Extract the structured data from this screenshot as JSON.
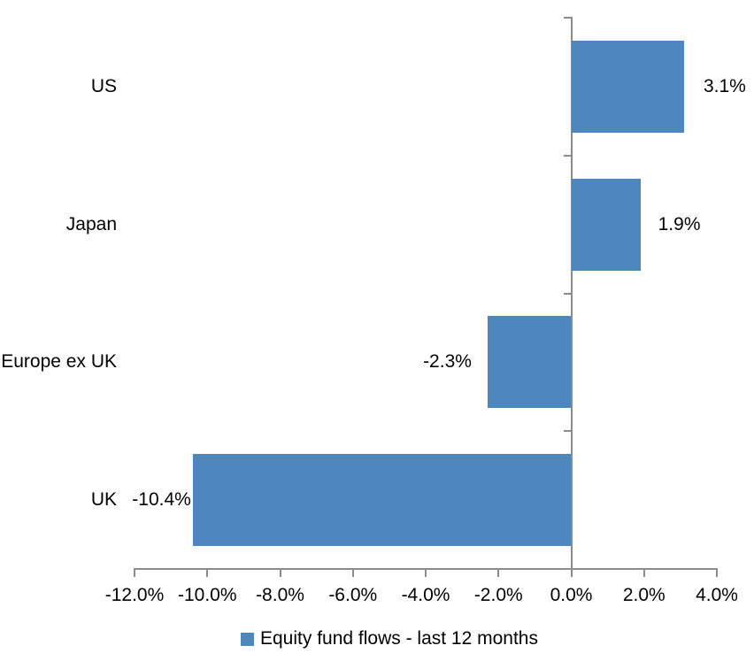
{
  "chart_data": {
    "type": "bar",
    "orientation": "horizontal",
    "title": "",
    "categories": [
      "US",
      "Japan",
      "Europe ex UK",
      "UK"
    ],
    "series": [
      {
        "name": "Equity fund flows - last 12 months",
        "values": [
          3.1,
          1.9,
          -2.3,
          -10.4
        ]
      }
    ],
    "data_labels": [
      "3.1%",
      "1.9%",
      "-2.3%",
      "-10.4%"
    ],
    "x_ticks": [
      "-12.0%",
      "-10.0%",
      "-8.0%",
      "-6.0%",
      "-4.0%",
      "-2.0%",
      "0.0%",
      "2.0%",
      "4.0%"
    ],
    "x_tick_values": [
      -12,
      -10,
      -8,
      -6,
      -4,
      -2,
      0,
      2,
      4
    ],
    "xlim": [
      -12,
      4
    ],
    "grid": "off",
    "legend": {
      "position": "bottom",
      "label": "Equity fund flows - last 12 months"
    },
    "colors": {
      "bar": "#4E86BE",
      "axis": "#8C8C8C",
      "text": "#000000",
      "background": "#FFFFFF"
    }
  }
}
